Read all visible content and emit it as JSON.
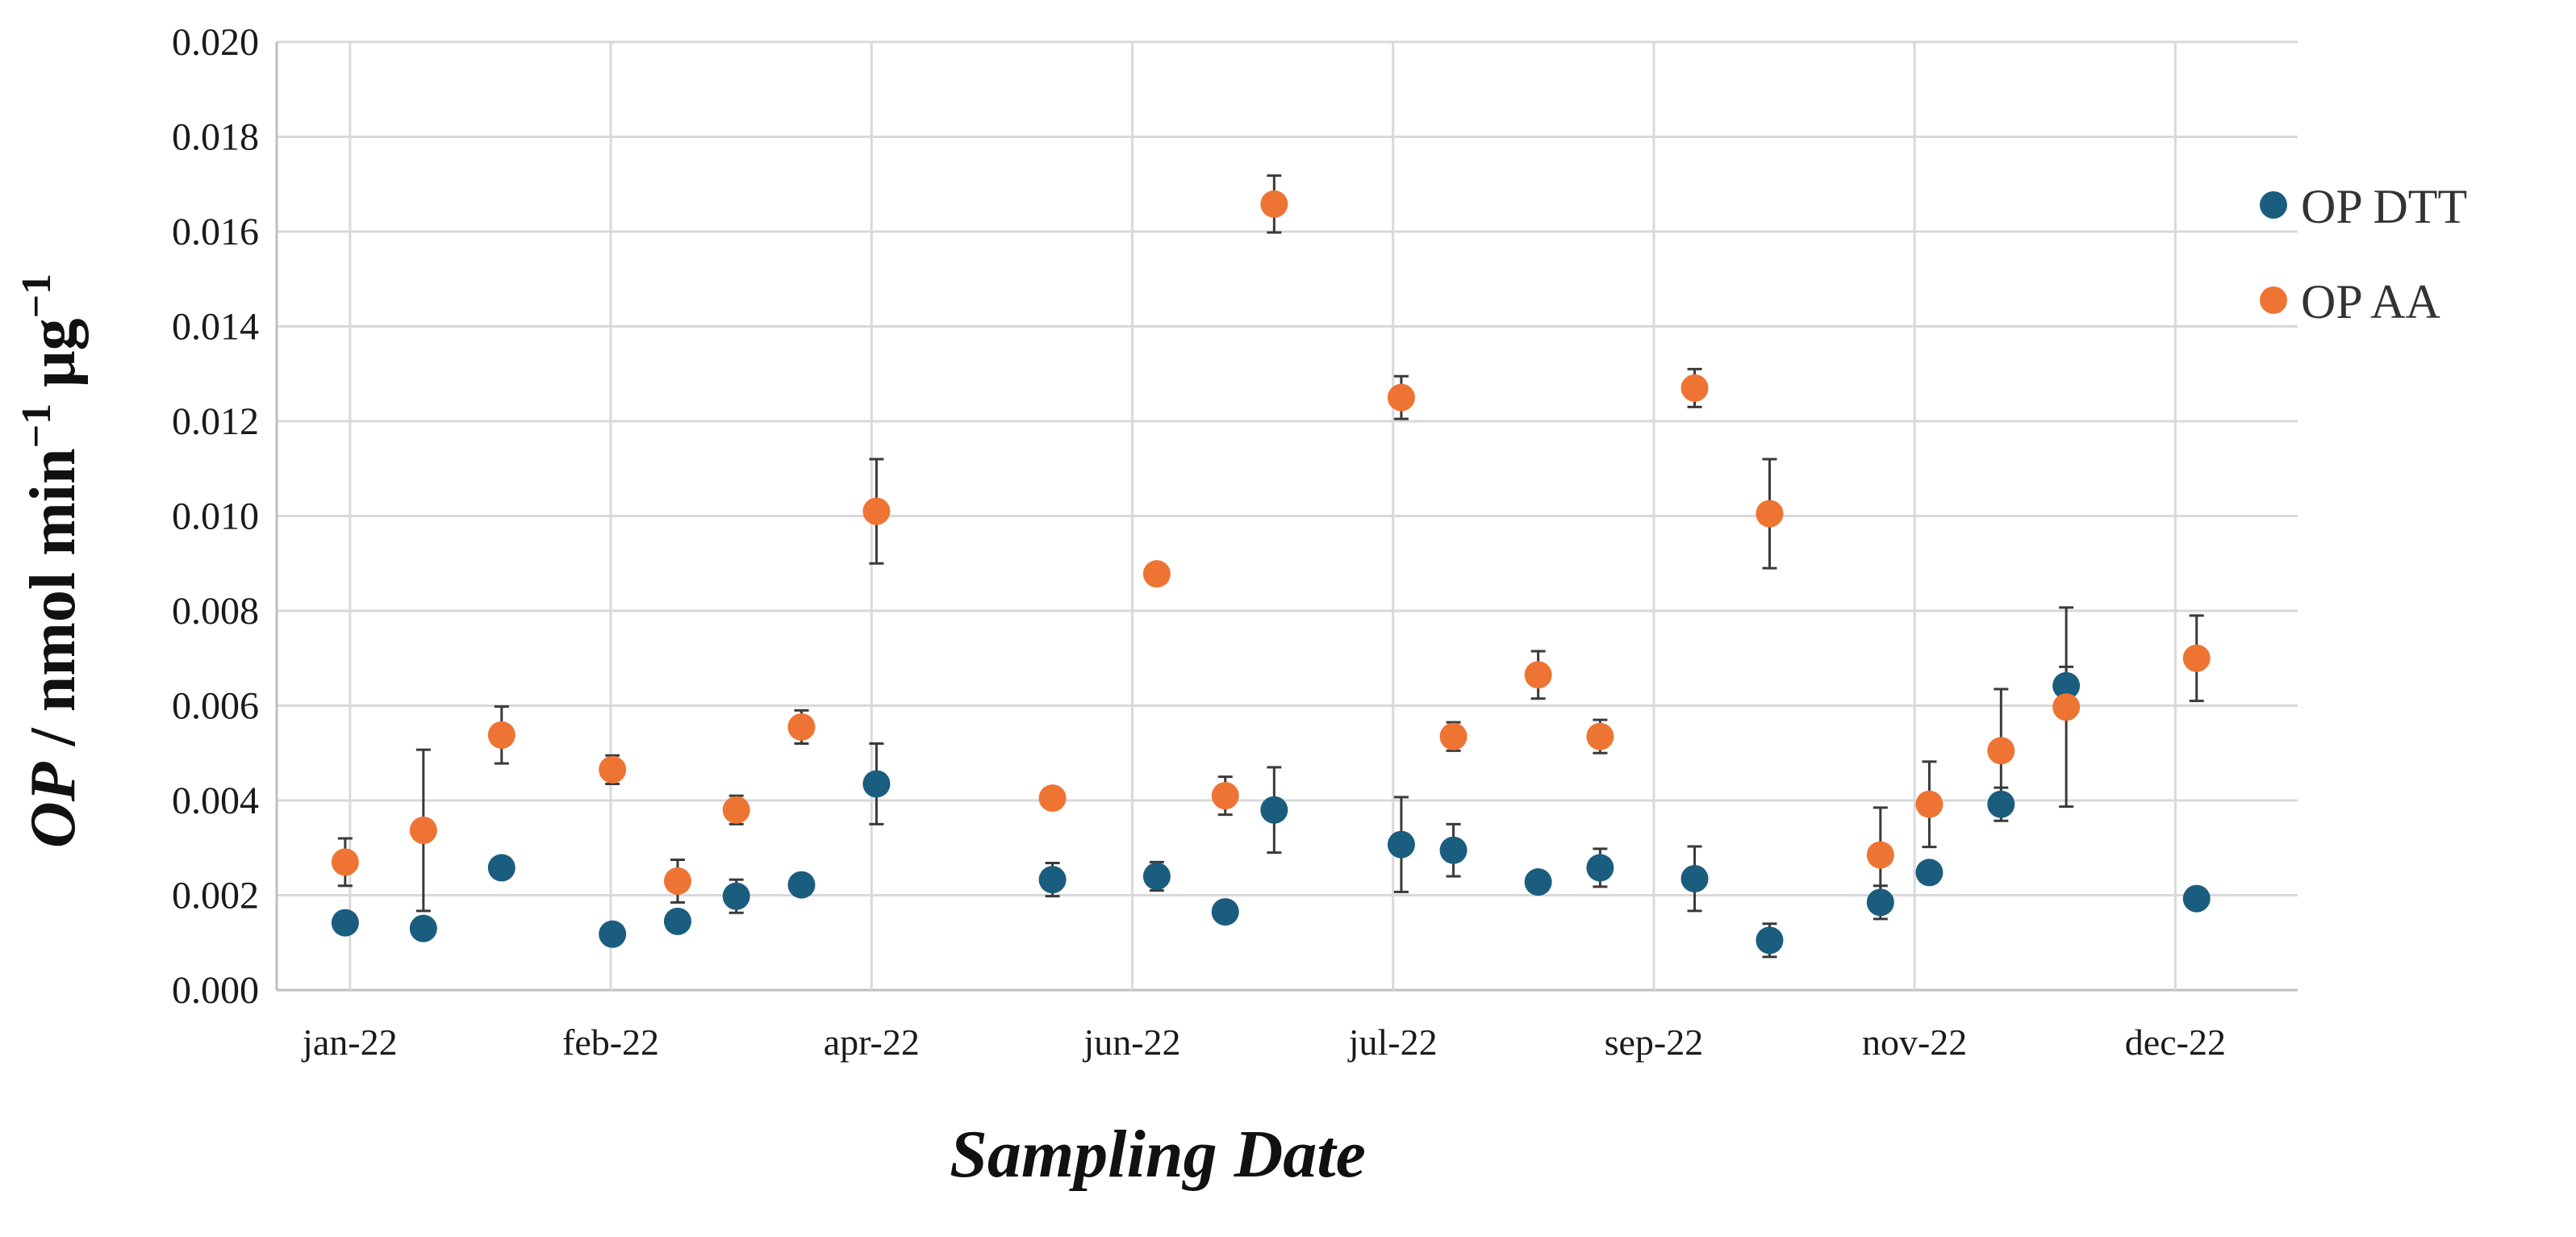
{
  "chart_data": {
    "type": "scatter",
    "xlabel": "Sampling Date",
    "ylabel": {
      "prefix": "OP",
      "rest": " / nmol min",
      "exp1": "−1",
      "unit2": " μg",
      "exp2": "−1"
    },
    "ylim": [
      0,
      0.02
    ],
    "yticks": [
      "0.000",
      "0.002",
      "0.004",
      "0.006",
      "0.008",
      "0.010",
      "0.012",
      "0.014",
      "0.016",
      "0.018",
      "0.020"
    ],
    "xticks": [
      {
        "label": "jan-22",
        "x": 1.0
      },
      {
        "label": "feb-22",
        "x": 5.0
      },
      {
        "label": "apr-22",
        "x": 9.0
      },
      {
        "label": "jun-22",
        "x": 13.0
      },
      {
        "label": "jul-22",
        "x": 17.0
      },
      {
        "label": "sep-22",
        "x": 21.0
      },
      {
        "label": "nov-22",
        "x": 25.0
      },
      {
        "label": "dec-22",
        "x": 29.0
      }
    ],
    "xlim": [
      0,
      31
    ],
    "grid": true,
    "legend_position": "right",
    "series": [
      {
        "name": "OP DTT",
        "color": "#1a5d7e",
        "points": [
          {
            "x": 1.05,
            "y": 0.00142,
            "err": 0
          },
          {
            "x": 2.25,
            "y": 0.0013,
            "err": 0
          },
          {
            "x": 3.45,
            "y": 0.00258,
            "err": 0
          },
          {
            "x": 5.15,
            "y": 0.00118,
            "err": 0
          },
          {
            "x": 6.15,
            "y": 0.00145,
            "err": 0
          },
          {
            "x": 7.05,
            "y": 0.00198,
            "err": 0.00035
          },
          {
            "x": 8.05,
            "y": 0.00222,
            "err": 0
          },
          {
            "x": 9.2,
            "y": 0.00435,
            "err": 0.00085
          },
          {
            "x": 11.9,
            "y": 0.00233,
            "err": 0.00035
          },
          {
            "x": 13.5,
            "y": 0.0024,
            "err": 0.0003
          },
          {
            "x": 14.55,
            "y": 0.00165,
            "err": 0
          },
          {
            "x": 15.3,
            "y": 0.0038,
            "err": 0.0009
          },
          {
            "x": 17.25,
            "y": 0.00307,
            "err": 0.001
          },
          {
            "x": 18.05,
            "y": 0.00295,
            "err": 0.00055
          },
          {
            "x": 19.35,
            "y": 0.00228,
            "err": 0
          },
          {
            "x": 20.3,
            "y": 0.00258,
            "err": 0.0004
          },
          {
            "x": 21.75,
            "y": 0.00235,
            "err": 0.00068
          },
          {
            "x": 22.9,
            "y": 0.00105,
            "err": 0.00035
          },
          {
            "x": 24.6,
            "y": 0.00185,
            "err": 0.00035
          },
          {
            "x": 25.35,
            "y": 0.00248,
            "err": 0
          },
          {
            "x": 26.45,
            "y": 0.00392,
            "err": 0.00035
          },
          {
            "x": 27.45,
            "y": 0.00642,
            "err": 0.0004
          },
          {
            "x": 29.45,
            "y": 0.00193,
            "err": 0
          }
        ]
      },
      {
        "name": "OP AA",
        "color": "#ee7434",
        "points": [
          {
            "x": 1.05,
            "y": 0.0027,
            "err": 0.0005
          },
          {
            "x": 2.25,
            "y": 0.00337,
            "err": 0.0017
          },
          {
            "x": 3.45,
            "y": 0.00538,
            "err": 0.0006
          },
          {
            "x": 5.15,
            "y": 0.00465,
            "err": 0.0003
          },
          {
            "x": 6.15,
            "y": 0.0023,
            "err": 0.00045
          },
          {
            "x": 7.05,
            "y": 0.0038,
            "err": 0.0003
          },
          {
            "x": 8.05,
            "y": 0.00555,
            "err": 0.00035
          },
          {
            "x": 9.2,
            "y": 0.0101,
            "err": 0.0011
          },
          {
            "x": 11.9,
            "y": 0.00405,
            "err": 0
          },
          {
            "x": 13.5,
            "y": 0.00878,
            "err": 0
          },
          {
            "x": 14.55,
            "y": 0.0041,
            "err": 0.0004
          },
          {
            "x": 15.3,
            "y": 0.01658,
            "err": 0.0006
          },
          {
            "x": 17.25,
            "y": 0.0125,
            "err": 0.00045
          },
          {
            "x": 18.05,
            "y": 0.00535,
            "err": 0.0003
          },
          {
            "x": 19.35,
            "y": 0.00665,
            "err": 0.0005
          },
          {
            "x": 20.3,
            "y": 0.00535,
            "err": 0.00035
          },
          {
            "x": 21.75,
            "y": 0.0127,
            "err": 0.0004
          },
          {
            "x": 22.9,
            "y": 0.01005,
            "err": 0.00115
          },
          {
            "x": 24.6,
            "y": 0.00285,
            "err": 0.001
          },
          {
            "x": 25.35,
            "y": 0.00392,
            "err": 0.0009
          },
          {
            "x": 26.45,
            "y": 0.00505,
            "err": 0.0013
          },
          {
            "x": 27.45,
            "y": 0.00597,
            "err": 0.0021
          },
          {
            "x": 29.45,
            "y": 0.007,
            "err": 0.0009
          }
        ]
      }
    ]
  }
}
